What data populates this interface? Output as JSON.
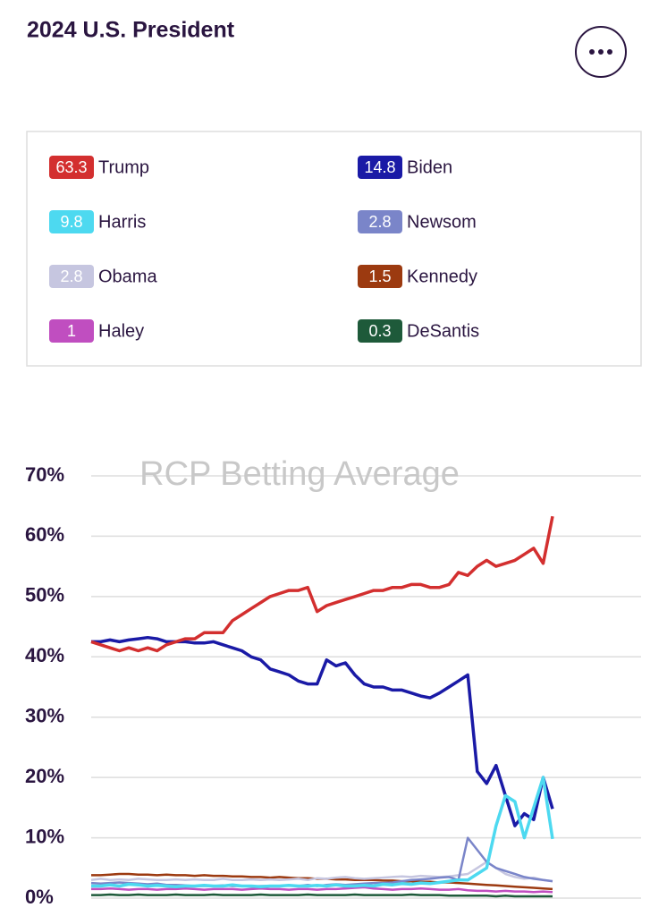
{
  "title": "2024 U.S. President",
  "chart_data": {
    "type": "line",
    "watermark": "RCP Betting Average",
    "ylim": [
      0,
      70
    ],
    "yticks": [
      {
        "value": 0,
        "label": "0%"
      },
      {
        "value": 10,
        "label": "10%"
      },
      {
        "value": 20,
        "label": "20%"
      },
      {
        "value": 30,
        "label": "30%"
      },
      {
        "value": 40,
        "label": "40%"
      },
      {
        "value": 50,
        "label": "50%"
      },
      {
        "value": 60,
        "label": "60%"
      },
      {
        "value": 70,
        "label": "70%"
      }
    ],
    "grid": true,
    "series": [
      {
        "name": "Trump",
        "color": "#d32f2f",
        "latest": 63.3,
        "values": [
          42.5,
          42,
          41.5,
          41,
          41.5,
          41,
          41.5,
          41,
          42,
          42.5,
          43,
          43,
          44,
          44,
          44,
          46,
          47,
          48,
          49,
          50,
          50.5,
          51,
          51,
          51.5,
          47.5,
          48.5,
          49,
          49.5,
          50,
          50.5,
          51,
          51,
          51.5,
          51.5,
          52,
          52,
          51.5,
          51.5,
          52,
          54,
          53.5,
          55,
          56,
          55,
          55.5,
          56,
          57,
          58,
          55.5,
          63.3
        ]
      },
      {
        "name": "Biden",
        "color": "#1a1aa6",
        "latest": 14.8,
        "values": [
          42.5,
          42.5,
          42.8,
          42.5,
          42.8,
          43,
          43.2,
          43,
          42.5,
          42.5,
          42.5,
          42.3,
          42.3,
          42.5,
          42,
          41.5,
          41,
          40,
          39.5,
          38,
          37.5,
          37,
          36,
          35.5,
          35.5,
          39.5,
          38.5,
          39,
          37,
          35.5,
          35,
          35,
          34.5,
          34.5,
          34,
          33.5,
          33.2,
          34,
          35,
          36,
          37,
          21,
          19,
          22,
          17,
          12,
          14,
          13,
          20,
          14.8
        ]
      },
      {
        "name": "Harris",
        "color": "#4dd9f0",
        "latest": 9.8,
        "values": [
          2,
          2,
          2.2,
          2,
          2.3,
          2.2,
          2,
          2.1,
          2,
          1.9,
          2,
          2,
          2.1,
          2,
          2,
          2.2,
          2,
          2,
          1.9,
          2,
          2,
          2.1,
          2,
          2,
          2.1,
          2,
          2.2,
          2,
          2,
          2.1,
          2,
          2.3,
          2.2,
          2.4,
          2.3,
          2.5,
          2.4,
          2.6,
          2.8,
          3,
          3,
          4,
          5,
          12,
          17,
          16,
          10,
          15,
          20,
          9.8
        ]
      },
      {
        "name": "Newsom",
        "color": "#7a85c9",
        "latest": 2.8,
        "values": [
          2.5,
          2.4,
          2.5,
          2.6,
          2.5,
          2.4,
          2.3,
          2.4,
          2.2,
          2.2,
          2.1,
          2,
          2,
          2,
          2.1,
          2,
          2,
          1.9,
          2,
          2,
          2,
          2.1,
          2,
          2.2,
          2,
          2.2,
          2.3,
          2.2,
          2.3,
          2.4,
          2.5,
          2.5,
          2.6,
          2.8,
          3,
          3.1,
          3.2,
          3.4,
          3.5,
          3,
          10,
          8,
          6,
          5,
          4.5,
          4,
          3.5,
          3.2,
          3,
          2.8
        ]
      },
      {
        "name": "Obama",
        "color": "#c6c6e0",
        "latest": 2.8,
        "values": [
          3,
          3.2,
          3,
          3.1,
          3,
          3.2,
          3.1,
          3,
          3,
          3.1,
          3,
          3.1,
          3,
          3,
          3.2,
          3,
          3,
          3.1,
          3,
          3.1,
          3,
          3.1,
          3.2,
          3,
          3.3,
          3.2,
          3.4,
          3.5,
          3.3,
          3.2,
          3.3,
          3.4,
          3.5,
          3.6,
          3.5,
          3.7,
          3.6,
          3.5,
          3.6,
          3.8,
          4,
          5,
          6,
          5,
          4,
          3.5,
          3.2,
          3.4,
          3,
          2.8
        ]
      },
      {
        "name": "Kennedy",
        "color": "#9c3a10",
        "latest": 1.5,
        "values": [
          3.8,
          3.8,
          3.9,
          4,
          4,
          3.9,
          3.9,
          3.8,
          3.9,
          3.8,
          3.8,
          3.7,
          3.8,
          3.7,
          3.7,
          3.6,
          3.6,
          3.5,
          3.5,
          3.4,
          3.5,
          3.4,
          3.3,
          3.3,
          3.2,
          3.2,
          3.1,
          3.1,
          3,
          3,
          3,
          2.9,
          2.9,
          2.8,
          2.8,
          2.7,
          2.7,
          2.6,
          2.6,
          2.5,
          2.4,
          2.3,
          2.2,
          2.1,
          2,
          1.9,
          1.8,
          1.7,
          1.6,
          1.5
        ]
      },
      {
        "name": "Haley",
        "color": "#c04ec0",
        "latest": 1.0,
        "values": [
          1.5,
          1.5,
          1.6,
          1.5,
          1.4,
          1.5,
          1.5,
          1.4,
          1.5,
          1.5,
          1.6,
          1.5,
          1.4,
          1.5,
          1.5,
          1.5,
          1.4,
          1.5,
          1.6,
          1.5,
          1.5,
          1.4,
          1.5,
          1.5,
          1.4,
          1.5,
          1.5,
          1.6,
          1.7,
          1.8,
          1.6,
          1.5,
          1.4,
          1.5,
          1.5,
          1.6,
          1.5,
          1.4,
          1.4,
          1.5,
          1.3,
          1.2,
          1.2,
          1.1,
          1.2,
          1.1,
          1.1,
          1,
          1.1,
          1
        ]
      },
      {
        "name": "DeSantis",
        "color": "#1e5a3a",
        "latest": 0.3,
        "values": [
          0.5,
          0.5,
          0.6,
          0.5,
          0.5,
          0.6,
          0.5,
          0.5,
          0.5,
          0.6,
          0.5,
          0.5,
          0.5,
          0.6,
          0.5,
          0.5,
          0.5,
          0.5,
          0.6,
          0.5,
          0.5,
          0.5,
          0.5,
          0.6,
          0.5,
          0.5,
          0.5,
          0.5,
          0.6,
          0.5,
          0.5,
          0.5,
          0.5,
          0.5,
          0.6,
          0.5,
          0.5,
          0.5,
          0.4,
          0.4,
          0.4,
          0.4,
          0.4,
          0.3,
          0.4,
          0.3,
          0.3,
          0.3,
          0.3,
          0.3
        ]
      }
    ]
  }
}
